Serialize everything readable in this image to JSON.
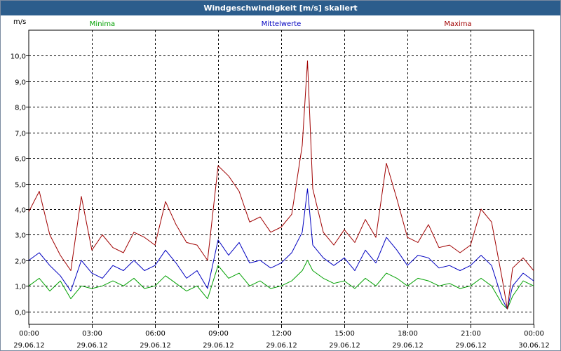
{
  "window": {
    "title": "Windgeschwindigkeit [m/s] skaliert"
  },
  "chart_data": {
    "type": "line",
    "title": "Windgeschwindigkeit [m/s] skaliert",
    "ylabel": "m/s",
    "ylim": [
      -0.5,
      11.0
    ],
    "yticks": [
      0.0,
      1.0,
      2.0,
      3.0,
      4.0,
      5.0,
      6.0,
      7.0,
      8.0,
      9.0,
      10.0
    ],
    "ytick_labels": [
      "0,0",
      "1,0",
      "2,0",
      "3,0",
      "4,0",
      "5,0",
      "6,0",
      "7,0",
      "8,0",
      "9,0",
      "10,0"
    ],
    "xlim": [
      0,
      24
    ],
    "grid": true,
    "xticks": [
      {
        "hour": 0,
        "time": "00:00",
        "date": "29.06.12"
      },
      {
        "hour": 3,
        "time": "03:00",
        "date": "29.06.12"
      },
      {
        "hour": 6,
        "time": "06:00",
        "date": "29.06.12"
      },
      {
        "hour": 9,
        "time": "09:00",
        "date": "29.06.12"
      },
      {
        "hour": 12,
        "time": "12:00",
        "date": "29.06.12"
      },
      {
        "hour": 15,
        "time": "15:00",
        "date": "29.06.12"
      },
      {
        "hour": 18,
        "time": "18:00",
        "date": "29.06.12"
      },
      {
        "hour": 21,
        "time": "21:00",
        "date": "29.06.12"
      },
      {
        "hour": 24,
        "time": "00:00",
        "date": "30.06.12"
      }
    ],
    "x": [
      0.0,
      0.5,
      1.0,
      1.5,
      2.0,
      2.5,
      3.0,
      3.5,
      4.0,
      4.5,
      5.0,
      5.5,
      6.0,
      6.5,
      7.0,
      7.5,
      8.0,
      8.5,
      9.0,
      9.5,
      10.0,
      10.5,
      11.0,
      11.5,
      12.0,
      12.5,
      13.0,
      13.25,
      13.5,
      14.0,
      14.5,
      15.0,
      15.5,
      16.0,
      16.5,
      17.0,
      17.5,
      18.0,
      18.5,
      19.0,
      19.5,
      20.0,
      20.5,
      21.0,
      21.5,
      22.0,
      22.5,
      22.75,
      23.0,
      23.5,
      24.0
    ],
    "series": [
      {
        "name": "Minima",
        "color": "#00a000",
        "values": [
          1.0,
          1.3,
          0.8,
          1.2,
          0.5,
          1.0,
          0.9,
          1.0,
          1.2,
          1.0,
          1.3,
          0.9,
          1.0,
          1.4,
          1.1,
          0.8,
          1.0,
          0.5,
          1.8,
          1.3,
          1.5,
          1.0,
          1.2,
          0.9,
          1.0,
          1.2,
          1.6,
          2.0,
          1.6,
          1.3,
          1.1,
          1.2,
          0.9,
          1.3,
          1.0,
          1.5,
          1.3,
          1.0,
          1.3,
          1.2,
          1.0,
          1.1,
          0.9,
          1.0,
          1.3,
          1.0,
          0.3,
          0.1,
          0.6,
          1.2,
          1.0
        ]
      },
      {
        "name": "Mittelwerte",
        "color": "#0000c0",
        "values": [
          2.0,
          2.3,
          1.8,
          1.4,
          0.8,
          2.0,
          1.5,
          1.3,
          1.8,
          1.6,
          2.0,
          1.6,
          1.8,
          2.4,
          1.9,
          1.3,
          1.6,
          0.9,
          2.8,
          2.2,
          2.7,
          1.9,
          2.0,
          1.7,
          1.9,
          2.3,
          3.1,
          4.8,
          2.6,
          2.1,
          1.8,
          2.1,
          1.6,
          2.4,
          1.9,
          2.9,
          2.4,
          1.8,
          2.2,
          2.1,
          1.7,
          1.8,
          1.6,
          1.8,
          2.2,
          1.8,
          0.5,
          0.1,
          1.0,
          1.5,
          1.2
        ]
      },
      {
        "name": "Maxima",
        "color": "#a00000",
        "values": [
          3.9,
          4.7,
          3.0,
          2.2,
          1.6,
          4.5,
          2.4,
          3.0,
          2.5,
          2.3,
          3.1,
          2.9,
          2.6,
          4.3,
          3.4,
          2.7,
          2.6,
          2.0,
          5.7,
          5.3,
          4.7,
          3.5,
          3.7,
          3.1,
          3.3,
          3.8,
          6.5,
          9.8,
          4.8,
          3.1,
          2.6,
          3.2,
          2.7,
          3.6,
          2.9,
          5.8,
          4.4,
          2.9,
          2.7,
          3.4,
          2.5,
          2.6,
          2.3,
          2.6,
          4.0,
          3.5,
          1.3,
          0.1,
          1.7,
          2.1,
          1.6
        ]
      }
    ]
  }
}
